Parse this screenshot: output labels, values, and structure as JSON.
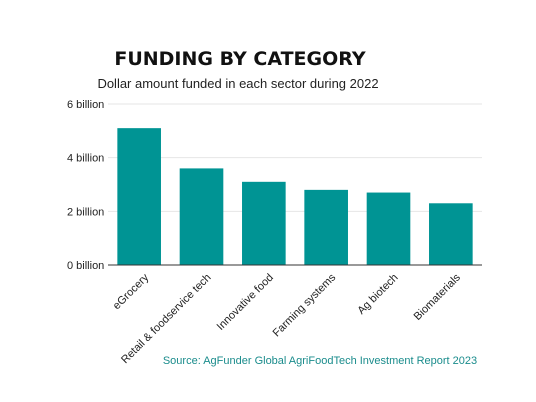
{
  "chart_data": {
    "type": "bar",
    "title": "FUNDING BY CATEGORY",
    "subtitle": "Dollar amount funded in each sector during 2022",
    "categories": [
      "eGrocery",
      "Retail & foodservice tech",
      "Innovative food",
      "Farming systems",
      "Ag biotech",
      "Biomaterials"
    ],
    "values": [
      5.1,
      3.6,
      3.1,
      2.8,
      2.7,
      2.3
    ],
    "unit": "billion",
    "ylim": [
      0,
      6
    ],
    "yticks": [
      0,
      2,
      4,
      6
    ],
    "ytick_labels": [
      "0 billion",
      "2 billion",
      "4 billion",
      "6 billion"
    ],
    "grid": true,
    "legend": "none",
    "bar_color": "#009494",
    "source": "Source: AgFunder Global AgriFoodTech Investment Report 2023"
  }
}
